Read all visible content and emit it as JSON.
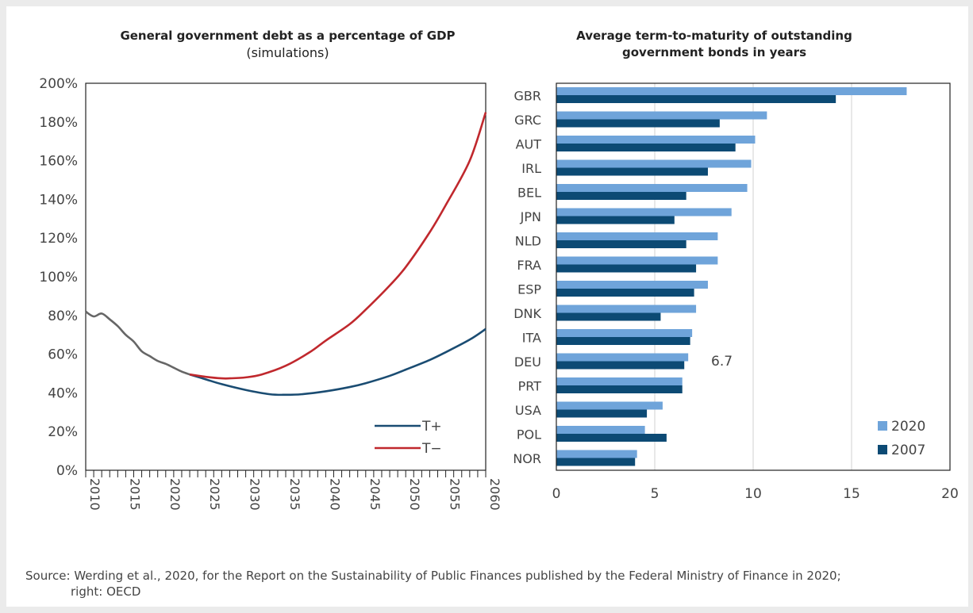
{
  "left_title": "General government debt as a percentage of GDP",
  "left_subtitle": "(simulations)",
  "right_title": "Average term-to-maturity of outstanding government bonds in years",
  "source_line1": "Source: Werding et al., 2020, for the Report on the Sustainability of Public Finances published by the Federal Ministry of Finance in 2020;",
  "source_line2": "right: OECD",
  "colors": {
    "history": "#666666",
    "t_plus": "#1a4c72",
    "t_minus": "#c0282d",
    "bar_2020": "#6fa4da",
    "bar_2007": "#0c4a74",
    "grid": "#d0d0d0"
  },
  "chart_data": [
    {
      "type": "line",
      "title": "General government debt as a percentage of GDP",
      "subtitle": "(simulations)",
      "xlim": [
        2010,
        2060
      ],
      "ylim": [
        0,
        200
      ],
      "y_ticks": [
        "0%",
        "20%",
        "40%",
        "60%",
        "80%",
        "100%",
        "120%",
        "140%",
        "160%",
        "180%",
        "200%"
      ],
      "x_ticks": [
        "2010",
        "2015",
        "2020",
        "2025",
        "2030",
        "2035",
        "2040",
        "2045",
        "2050",
        "2055",
        "2060"
      ],
      "legend": "bottom-right",
      "series": [
        {
          "name": "",
          "x": [
            2010,
            2011,
            2012,
            2013,
            2014,
            2015,
            2016,
            2017,
            2018,
            2019,
            2020,
            2021,
            2022,
            2023
          ],
          "values": [
            82,
            79.5,
            81,
            78,
            74.5,
            70,
            66.5,
            61.5,
            59,
            56.5,
            55,
            53,
            51,
            49.5
          ]
        },
        {
          "name": "T+",
          "x": [
            2023,
            2025,
            2027,
            2030,
            2033,
            2035,
            2037,
            2040,
            2043,
            2045,
            2048,
            2050,
            2053,
            2055,
            2058,
            2060
          ],
          "values": [
            49.5,
            47,
            44.5,
            41.5,
            39.3,
            39,
            39.3,
            40.8,
            43,
            45,
            48.8,
            52,
            57,
            61,
            67.5,
            73
          ]
        },
        {
          "name": "T−",
          "x": [
            2023,
            2025,
            2027,
            2028,
            2030,
            2032,
            2035,
            2038,
            2040,
            2043,
            2045,
            2048,
            2050,
            2053,
            2055,
            2058,
            2060
          ],
          "values": [
            49.5,
            48.3,
            47.5,
            47.5,
            48,
            49.5,
            54,
            61,
            67,
            75.5,
            83,
            95.5,
            105,
            123,
            137,
            160,
            185
          ]
        }
      ]
    },
    {
      "type": "bar",
      "orientation": "horizontal",
      "title": "Average term-to-maturity of outstanding government bonds in years",
      "categories": [
        "GBR",
        "GRC",
        "AUT",
        "IRL",
        "BEL",
        "JPN",
        "NLD",
        "FRA",
        "ESP",
        "DNK",
        "ITA",
        "DEU",
        "PRT",
        "USA",
        "POL",
        "NOR"
      ],
      "xlim": [
        0,
        20
      ],
      "x_ticks": [
        "0",
        "5",
        "10",
        "15",
        "20"
      ],
      "legend": "bottom-right",
      "annotation": {
        "category": "DEU",
        "text": "6.7"
      },
      "series": [
        {
          "name": "2020",
          "values": [
            17.8,
            10.7,
            10.1,
            9.9,
            9.7,
            8.9,
            8.2,
            8.2,
            7.7,
            7.1,
            6.9,
            6.7,
            6.4,
            5.4,
            4.5,
            4.1
          ]
        },
        {
          "name": "2007",
          "values": [
            14.2,
            8.3,
            9.1,
            7.7,
            6.6,
            6.0,
            6.6,
            7.1,
            7.0,
            5.3,
            6.8,
            6.5,
            6.4,
            4.6,
            5.6,
            4.0
          ]
        }
      ]
    }
  ]
}
